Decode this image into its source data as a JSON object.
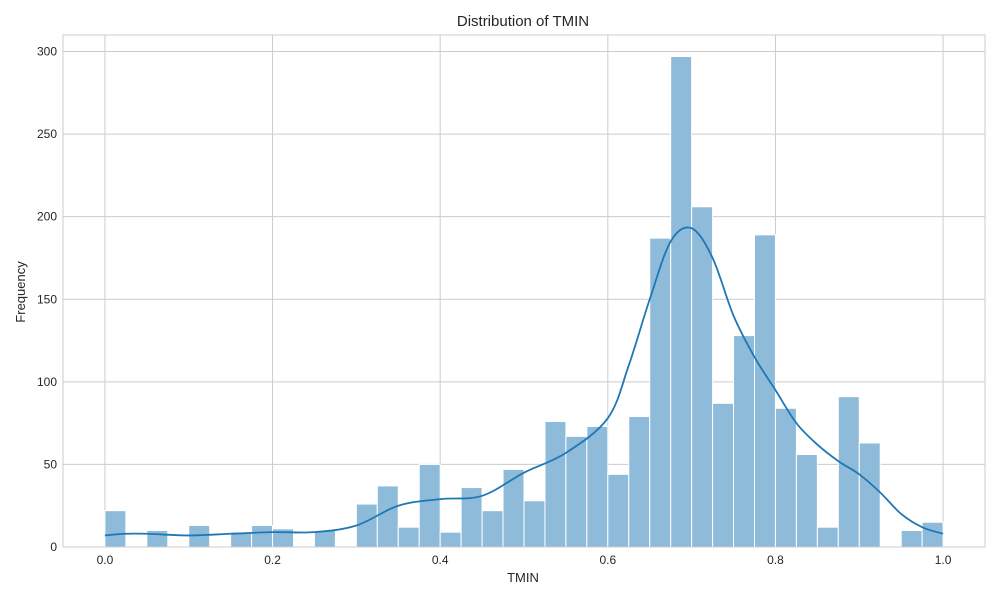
{
  "chart_data": {
    "type": "bar",
    "title": "Distribution of TMIN",
    "xlabel": "TMIN",
    "ylabel": "Frequency",
    "xlim": [
      -0.05,
      1.05
    ],
    "ylim": [
      0,
      310
    ],
    "grid": true,
    "x_ticks": [
      0.0,
      0.2,
      0.4,
      0.6,
      0.8,
      1.0
    ],
    "x_tick_labels": [
      "0.0",
      "0.2",
      "0.4",
      "0.6",
      "0.8",
      "1.0"
    ],
    "y_ticks": [
      0,
      50,
      100,
      150,
      200,
      250,
      300
    ],
    "y_tick_labels": [
      "0",
      "50",
      "100",
      "150",
      "200",
      "250",
      "300"
    ],
    "bin_width": 0.025,
    "bin_starts": [
      0.0,
      0.025,
      0.05,
      0.075,
      0.1,
      0.125,
      0.15,
      0.175,
      0.2,
      0.225,
      0.25,
      0.275,
      0.3,
      0.325,
      0.35,
      0.375,
      0.4,
      0.425,
      0.45,
      0.475,
      0.5,
      0.525,
      0.55,
      0.575,
      0.6,
      0.625,
      0.65,
      0.675,
      0.7,
      0.725,
      0.75,
      0.775,
      0.8,
      0.825,
      0.85,
      0.875,
      0.9,
      0.925,
      0.95,
      0.975
    ],
    "values": [
      22,
      0,
      10,
      0,
      13,
      0,
      9,
      13,
      11,
      0,
      10,
      0,
      26,
      37,
      12,
      50,
      9,
      36,
      22,
      47,
      28,
      76,
      67,
      73,
      44,
      79,
      187,
      297,
      206,
      87,
      128,
      189,
      84,
      56,
      12,
      91,
      63,
      0,
      10,
      15
    ],
    "kde": {
      "x": [
        0.0,
        0.025,
        0.05,
        0.1,
        0.15,
        0.2,
        0.25,
        0.3,
        0.35,
        0.4,
        0.45,
        0.5,
        0.55,
        0.6,
        0.625,
        0.65,
        0.675,
        0.7,
        0.725,
        0.75,
        0.775,
        0.8,
        0.825,
        0.85,
        0.875,
        0.9,
        0.925,
        0.95,
        0.975,
        1.0
      ],
      "y": [
        7,
        8,
        8,
        7,
        8,
        9,
        9,
        13,
        25,
        29,
        31,
        45,
        57,
        78,
        110,
        150,
        185,
        193,
        175,
        140,
        115,
        95,
        75,
        62,
        52,
        44,
        33,
        20,
        12,
        8
      ]
    },
    "colors": {
      "bar_fill": "#8fbbdb",
      "bar_edge": "#ffffff",
      "kde_line": "#1f77b4",
      "grid": "#cccccc",
      "axes_edge": "#cccccc"
    }
  }
}
